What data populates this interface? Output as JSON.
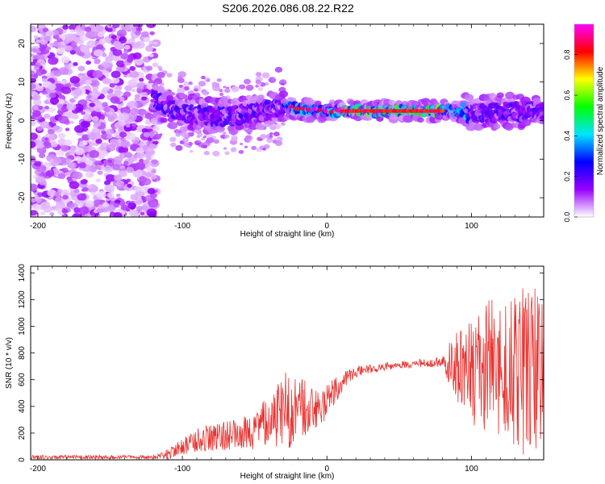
{
  "title": "S206.2026.086.08.22.R22",
  "chart_data": [
    {
      "type": "heatmap",
      "name": "spectrogram",
      "xlabel": "Height of straight line (km)",
      "ylabel": "Frequency (Hz)",
      "xlim": [
        -205,
        150
      ],
      "ylim": [
        -25,
        25
      ],
      "xticks": [
        -200,
        -100,
        0,
        100
      ],
      "yticks": [
        20,
        10,
        0,
        -10,
        -20
      ],
      "colorbar": {
        "label": "Normalized spectral amplitude",
        "range": [
          0,
          0.95
        ],
        "ticks": [
          0.0,
          0.2,
          0.4,
          0.6,
          0.8
        ],
        "colors": [
          "#ffffff",
          "#9900ff",
          "#0000ff",
          "#00e5ff",
          "#00ff00",
          "#ffff00",
          "#ff0000",
          "#ff00ff"
        ]
      },
      "features": {
        "noise_region_x": [
          -205,
          -118
        ],
        "signal_band_center_hz": [
          [
            -120,
            5.5
          ],
          [
            -100,
            2
          ],
          [
            -75,
            1
          ],
          [
            -50,
            2
          ],
          [
            -30,
            3.5
          ],
          [
            -20,
            3
          ],
          [
            0,
            2.5
          ],
          [
            40,
            2.5
          ],
          [
            80,
            2.5
          ],
          [
            100,
            2
          ],
          [
            150,
            2.5
          ]
        ],
        "peak_band_x": [
          10,
          80
        ],
        "peak_amplitude": 0.9
      }
    },
    {
      "type": "line",
      "name": "snr",
      "xlabel": "Height of straight line (km)",
      "ylabel": "SNR (10 * v/v)",
      "xlim": [
        -205,
        150
      ],
      "ylim": [
        0,
        1450
      ],
      "xticks": [
        -200,
        -100,
        0,
        100
      ],
      "yticks": [
        0,
        200,
        400,
        600,
        800,
        1000,
        1200,
        1400
      ],
      "color": "#e8312e",
      "envelope": {
        "x": [
          -205,
          -120,
          -110,
          -90,
          -70,
          -50,
          -40,
          -30,
          -20,
          -10,
          0,
          10,
          20,
          40,
          60,
          80,
          90,
          100,
          110,
          120,
          130,
          140,
          150
        ],
        "mean": [
          20,
          20,
          40,
          150,
          180,
          200,
          300,
          380,
          360,
          400,
          460,
          580,
          660,
          700,
          720,
          730,
          720,
          650,
          700,
          680,
          620,
          700,
          650
        ],
        "spread": [
          15,
          15,
          40,
          90,
          120,
          140,
          200,
          300,
          260,
          180,
          160,
          80,
          40,
          30,
          30,
          40,
          300,
          400,
          500,
          550,
          600,
          650,
          600
        ]
      }
    }
  ]
}
